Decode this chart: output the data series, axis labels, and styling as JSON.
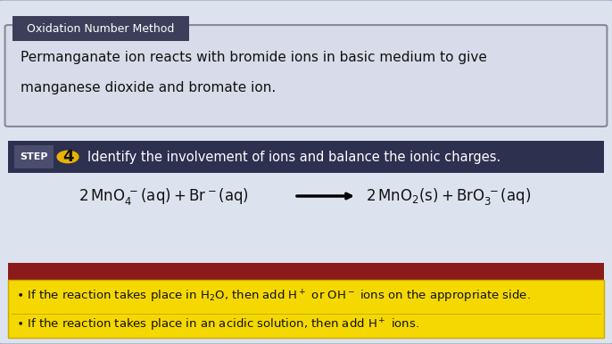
{
  "bg_color": "#dde3ee",
  "outer_border_color": "#8899bb",
  "tab_bg": "#3d3f5a",
  "tab_text": "Oxidation Number Method",
  "tab_text_color": "#ffffff",
  "problem_bg": "#d8dcea",
  "problem_border": "#888899",
  "problem_line1": "Permanganate ion reacts with bromide ions in basic medium to give",
  "problem_line2": "manganese dioxide and bromate ion.",
  "problem_text_color": "#111111",
  "step_bar_bg": "#2e3050",
  "step_label": "STEP",
  "step_label_color": "#ffffff",
  "step_num": "4",
  "step_num_bg": "#e8b400",
  "step_num_color": "#111111",
  "step_text": "Identify the involvement of ions and balance the ionic charges.",
  "step_text_color": "#ffffff",
  "equation_text_color": "#111111",
  "red_bar_color": "#8b1a1a",
  "yellow_box_bg": "#f5d800",
  "yellow_box_border": "#ccaa00",
  "bullet_color": "#111111",
  "fig_w": 6.86,
  "fig_h": 3.86,
  "dpi": 100
}
